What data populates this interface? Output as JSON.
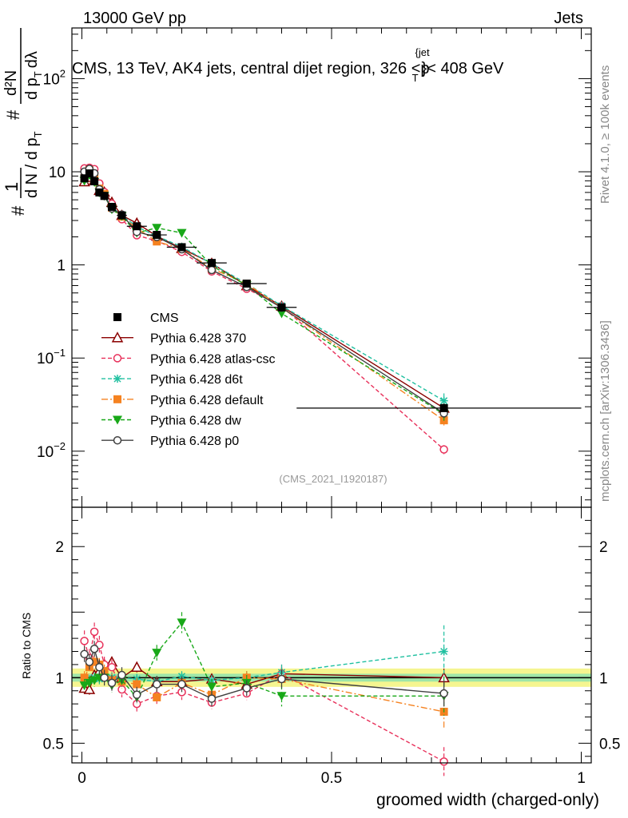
{
  "header": {
    "left": "13000 GeV pp",
    "right": "Jets"
  },
  "side_labels": {
    "rivet": "Rivet 4.1.0, ≥ 100k events",
    "mcplots": "mcplots.cern.ch [arXiv:1306.3436]"
  },
  "chart_data": {
    "type": "line",
    "title": "CMS, 13 TeV, AK4 jets, central dijet region, 326 <p",
    "title_sup": "{jet",
    "title_sub": "T",
    "title_tail": "}< 408 GeV",
    "analysis_label": "(CMS_2021_I1920187)",
    "xlabel": "groomed width (charged-only)",
    "ylabel": "d N / d p_T dp_T dλ",
    "ylabel_parts": {
      "hash": "#",
      "one": "1",
      "denominator": "d N / d p",
      "t": "T",
      "numerator": "d²N",
      "d": "d p",
      "dlam": "dλ"
    },
    "ratio_ylabel": "Ratio to CMS",
    "xlim": [
      -0.02,
      1.02
    ],
    "ylim": [
      0.0025,
      350
    ],
    "ratio_ylim": [
      0.35,
      2.3
    ],
    "x_ticks": [
      0,
      0.5,
      1
    ],
    "x_tick_labels": [
      "0",
      "0.5",
      "1"
    ],
    "y_tick_labels": [
      {
        "value": 100,
        "base": "10",
        "exp": "2"
      },
      {
        "value": 10,
        "base": "10",
        "exp": ""
      },
      {
        "value": 1,
        "base": "1",
        "exp": ""
      },
      {
        "value": 0.1,
        "base": "10",
        "exp": "−1"
      },
      {
        "value": 0.01,
        "base": "10",
        "exp": "−2"
      }
    ],
    "ratio_ticks": [
      0.5,
      1,
      2
    ],
    "ratio_tick_labels": [
      "0.5",
      "1",
      "2"
    ],
    "x": [
      0.005,
      0.015,
      0.025,
      0.035,
      0.045,
      0.06,
      0.08,
      0.11,
      0.15,
      0.2,
      0.26,
      0.33,
      0.4,
      0.725
    ],
    "x_edges": [
      0.0,
      0.01,
      0.02,
      0.03,
      0.04,
      0.05,
      0.07,
      0.09,
      0.13,
      0.17,
      0.23,
      0.29,
      0.37,
      0.43,
      1.0
    ],
    "reference": {
      "name": "CMS",
      "values": [
        8.5,
        9.6,
        7.9,
        6.0,
        5.5,
        4.2,
        3.4,
        2.6,
        2.1,
        1.55,
        1.05,
        0.63,
        0.35,
        0.029
      ],
      "band_inner": 0.03,
      "band_outer": 0.07
    },
    "series": [
      {
        "name": "Pythia 6.428 370",
        "color": "#8b0000",
        "marker": "triangle-open",
        "dash": "",
        "ratio": [
          0.92,
          0.91,
          1.02,
          1.05,
          1.1,
          1.12,
          1.0,
          1.08,
          0.97,
          0.97,
          0.99,
          0.95,
          1.03,
          1.0
        ],
        "err": [
          0.04,
          0.04,
          0.04,
          0.04,
          0.04,
          0.04,
          0.04,
          0.04,
          0.04,
          0.04,
          0.04,
          0.04,
          0.05,
          0.07
        ]
      },
      {
        "name": "Pythia 6.428 atlas-csc",
        "color": "#e8305a",
        "marker": "circle-open",
        "dash": "5,3",
        "ratio": [
          1.28,
          1.15,
          1.35,
          1.25,
          1.1,
          1.08,
          0.91,
          0.8,
          0.86,
          0.89,
          0.81,
          0.88,
          1.03,
          0.36
        ],
        "err": [
          0.08,
          0.07,
          0.07,
          0.07,
          0.06,
          0.06,
          0.06,
          0.07,
          0.06,
          0.06,
          0.05,
          0.05,
          0.07,
          0.11
        ]
      },
      {
        "name": "Pythia 6.428 d6t",
        "color": "#20c0a0",
        "marker": "star",
        "dash": "5,3",
        "ratio": [
          0.97,
          0.98,
          1.0,
          0.99,
          1.0,
          1.0,
          1.0,
          0.99,
          0.97,
          1.01,
          0.98,
          1.0,
          1.04,
          1.2
        ],
        "err": [
          0.04,
          0.04,
          0.04,
          0.04,
          0.04,
          0.04,
          0.04,
          0.04,
          0.04,
          0.04,
          0.04,
          0.05,
          0.06,
          0.2
        ]
      },
      {
        "name": "Pythia 6.428 default",
        "color": "#f58220",
        "marker": "square-filled",
        "dash": "8,3,2,3",
        "ratio": [
          1.0,
          1.08,
          1.12,
          1.1,
          1.05,
          0.98,
          0.97,
          0.95,
          0.85,
          0.96,
          0.87,
          1.0,
          0.99,
          0.74
        ],
        "err": [
          0.05,
          0.05,
          0.05,
          0.05,
          0.05,
          0.05,
          0.05,
          0.05,
          0.05,
          0.05,
          0.05,
          0.05,
          0.06,
          0.12
        ]
      },
      {
        "name": "Pythia 6.428 dw",
        "color": "#18a818",
        "marker": "triangle-down-filled",
        "dash": "5,3",
        "ratio": [
          0.94,
          0.96,
          0.98,
          1.0,
          1.0,
          0.94,
          0.98,
          0.85,
          1.19,
          1.42,
          0.93,
          0.96,
          0.86,
          0.86
        ],
        "err": [
          0.05,
          0.05,
          0.05,
          0.05,
          0.05,
          0.05,
          0.05,
          0.05,
          0.06,
          0.08,
          0.06,
          0.06,
          0.08,
          0.15
        ]
      },
      {
        "name": "Pythia 6.428 p0",
        "color": "#404040",
        "marker": "circle-open",
        "dash": "",
        "ratio": [
          1.18,
          1.12,
          1.22,
          1.08,
          1.0,
          0.96,
          1.02,
          0.87,
          0.95,
          0.95,
          0.84,
          0.92,
          0.99,
          0.88
        ],
        "err": [
          0.06,
          0.06,
          0.06,
          0.06,
          0.06,
          0.06,
          0.06,
          0.06,
          0.06,
          0.06,
          0.06,
          0.06,
          0.07,
          0.1
        ]
      }
    ]
  }
}
